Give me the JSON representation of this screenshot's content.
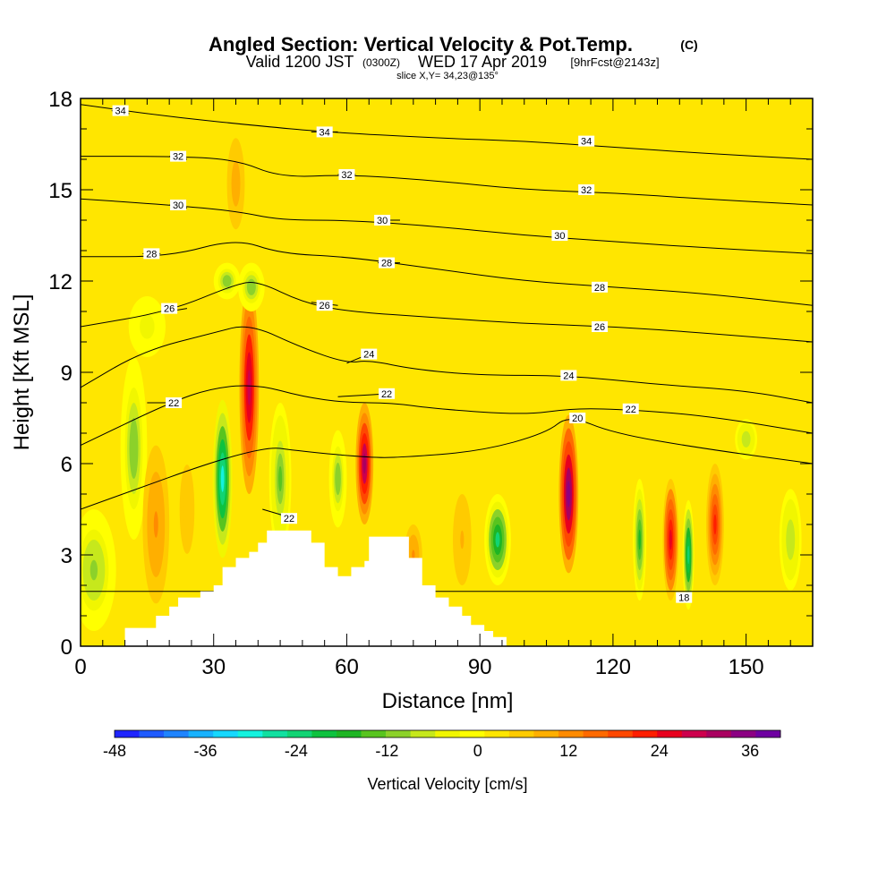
{
  "chart_data": {
    "type": "heatmap",
    "title": "Angled Section: Vertical Velocity & Pot.Temp.",
    "title_units": "(C)",
    "subtitle_main": "Valid 1200 JST",
    "subtitle_utc": "(0300Z)",
    "subtitle_date": "WED 17 Apr 2019",
    "subtitle_fcst": "[9hrFcst@2143z]",
    "slice_label": "slice X,Y= 34,23@135°",
    "xlabel": "Distance [nm]",
    "ylabel": "Height [Kft MSL]",
    "xlim": [
      0,
      165
    ],
    "ylim": [
      0,
      18
    ],
    "xticks": [
      0,
      30,
      60,
      90,
      120,
      150
    ],
    "yticks": [
      0,
      3,
      6,
      9,
      12,
      15,
      18
    ],
    "background_value_range": [
      0,
      6
    ],
    "vertical_velocity_cells": [
      {
        "x": 12,
        "y": 6.5,
        "xw": 3,
        "yw": 3,
        "v": -12
      },
      {
        "x": 17,
        "y": 4.0,
        "xw": 3,
        "yw": 2.6,
        "v": 12
      },
      {
        "x": 24,
        "y": 4.5,
        "xw": 2.5,
        "yw": 2.2,
        "v": 6
      },
      {
        "x": 32,
        "y": 5.5,
        "xw": 2.2,
        "yw": 2.6,
        "v": -30
      },
      {
        "x": 38,
        "y": 8.5,
        "xw": 2.2,
        "yw": 3.5,
        "v": 30
      },
      {
        "x": 38.5,
        "y": 11.8,
        "xw": 3,
        "yw": 0.8,
        "v": -12
      },
      {
        "x": 35,
        "y": 15.2,
        "xw": 2,
        "yw": 1.5,
        "v": 10
      },
      {
        "x": 45,
        "y": 5.5,
        "xw": 2.5,
        "yw": 2.5,
        "v": -14
      },
      {
        "x": 58,
        "y": 5.5,
        "xw": 2,
        "yw": 1.6,
        "v": -12
      },
      {
        "x": 64,
        "y": 6.0,
        "xw": 2,
        "yw": 2.0,
        "v": 32
      },
      {
        "x": 75,
        "y": 3.0,
        "xw": 2,
        "yw": 1,
        "v": 12
      },
      {
        "x": 86,
        "y": 3.5,
        "xw": 2.5,
        "yw": 1.8,
        "v": 8
      },
      {
        "x": 94,
        "y": 3.5,
        "xw": 3,
        "yw": 1.5,
        "v": -22
      },
      {
        "x": 110,
        "y": 5.0,
        "xw": 2.2,
        "yw": 2.6,
        "v": 36
      },
      {
        "x": 126,
        "y": 3.5,
        "xw": 1.5,
        "yw": 2,
        "v": -16
      },
      {
        "x": 133,
        "y": 3.5,
        "xw": 1.8,
        "yw": 2,
        "v": 26
      },
      {
        "x": 137,
        "y": 3.0,
        "xw": 1.3,
        "yw": 1.8,
        "v": -25
      },
      {
        "x": 143,
        "y": 4.0,
        "xw": 2,
        "yw": 2,
        "v": 22
      },
      {
        "x": 150,
        "y": 6.8,
        "xw": 3,
        "yw": 0.8,
        "v": -8
      },
      {
        "x": 160,
        "y": 3.5,
        "xw": 3,
        "yw": 2,
        "v": -8
      },
      {
        "x": 3,
        "y": 2.5,
        "xw": 5,
        "yw": 2,
        "v": -10
      },
      {
        "x": 15,
        "y": 10.5,
        "xw": 5,
        "yw": 1.2,
        "v": -5
      },
      {
        "x": 33,
        "y": 12.0,
        "xw": 3,
        "yw": 0.6,
        "v": -12
      }
    ],
    "potential_temperature_contours": [
      {
        "value": 18,
        "points": [
          [
            0,
            1.8
          ],
          [
            165,
            1.8
          ]
        ],
        "label_at": [
          136,
          1.6
        ]
      },
      {
        "value": 20,
        "points": [
          [
            0,
            4.5
          ],
          [
            40,
            6.6
          ],
          [
            50,
            6.4
          ],
          [
            65,
            6.2
          ],
          [
            72,
            6.2
          ],
          [
            90,
            6.4
          ],
          [
            105,
            7.0
          ],
          [
            110,
            7.6
          ],
          [
            120,
            7.0
          ],
          [
            140,
            6.5
          ],
          [
            165,
            6.0
          ]
        ],
        "label_at": [
          112,
          7.5
        ]
      },
      {
        "value": 22,
        "points": [
          [
            0,
            6.6
          ],
          [
            20,
            8.0
          ],
          [
            30,
            8.5
          ],
          [
            40,
            8.6
          ],
          [
            50,
            8.2
          ],
          [
            60,
            8.0
          ],
          [
            70,
            8.0
          ],
          [
            80,
            7.8
          ],
          [
            100,
            7.6
          ],
          [
            110,
            7.8
          ],
          [
            120,
            7.8
          ],
          [
            140,
            7.6
          ],
          [
            165,
            7.0
          ]
        ],
        "label_at": [
          124,
          7.8
        ]
      },
      {
        "value": 22,
        "points": [
          [
            15,
            8.0
          ],
          [
            22,
            8.0
          ]
        ],
        "label_at": [
          21,
          8.0
        ]
      },
      {
        "value": 22,
        "points": [
          [
            41,
            4.5
          ],
          [
            48,
            4.2
          ]
        ],
        "label_at": [
          47,
          4.2
        ]
      },
      {
        "value": 22,
        "points": [
          [
            58,
            8.2
          ],
          [
            70,
            8.3
          ]
        ],
        "label_at": [
          69,
          8.3
        ]
      },
      {
        "value": 24,
        "points": [
          [
            0,
            8.5
          ],
          [
            14,
            9.7
          ],
          [
            30,
            10.3
          ],
          [
            38,
            10.6
          ],
          [
            50,
            9.8
          ],
          [
            60,
            9.3
          ],
          [
            65,
            9.4
          ],
          [
            75,
            9.1
          ],
          [
            90,
            8.9
          ],
          [
            110,
            8.9
          ],
          [
            130,
            8.6
          ],
          [
            150,
            8.4
          ],
          [
            165,
            8.0
          ]
        ],
        "label_at": [
          110,
          8.9
        ]
      },
      {
        "value": 24,
        "points": [
          [
            60,
            9.3
          ],
          [
            65,
            9.6
          ]
        ],
        "label_at": [
          65,
          9.6
        ]
      },
      {
        "value": 26,
        "points": [
          [
            0,
            10.5
          ],
          [
            20,
            11.0
          ],
          [
            35,
            11.9
          ],
          [
            40,
            12.0
          ],
          [
            50,
            11.3
          ],
          [
            60,
            11.0
          ],
          [
            80,
            10.8
          ],
          [
            100,
            10.6
          ],
          [
            120,
            10.5
          ],
          [
            140,
            10.3
          ],
          [
            165,
            10.0
          ]
        ],
        "label_at": [
          117,
          10.5
        ]
      },
      {
        "value": 26,
        "points": [
          [
            20,
            11.0
          ],
          [
            24,
            11.1
          ]
        ],
        "label_at": [
          20,
          11.1
        ]
      },
      {
        "value": 26,
        "points": [
          [
            52,
            11.3
          ],
          [
            58,
            11.2
          ]
        ],
        "label_at": [
          55,
          11.2
        ]
      },
      {
        "value": 28,
        "points": [
          [
            0,
            12.8
          ],
          [
            20,
            12.8
          ],
          [
            35,
            13.4
          ],
          [
            45,
            12.9
          ],
          [
            60,
            12.8
          ],
          [
            80,
            12.4
          ],
          [
            100,
            12.0
          ],
          [
            120,
            11.8
          ],
          [
            140,
            11.6
          ],
          [
            165,
            11.2
          ]
        ],
        "label_at": [
          117,
          11.8
        ]
      },
      {
        "value": 28,
        "points": [
          [
            14,
            12.9
          ],
          [
            18,
            12.9
          ]
        ],
        "label_at": [
          16,
          12.9
        ]
      },
      {
        "value": 28,
        "points": [
          [
            67,
            12.6
          ],
          [
            72,
            12.6
          ]
        ],
        "label_at": [
          69,
          12.6
        ]
      },
      {
        "value": 30,
        "points": [
          [
            0,
            14.7
          ],
          [
            20,
            14.5
          ],
          [
            35,
            14.3
          ],
          [
            45,
            14.0
          ],
          [
            60,
            14.0
          ],
          [
            80,
            13.8
          ],
          [
            100,
            13.5
          ],
          [
            120,
            13.3
          ],
          [
            140,
            13.1
          ],
          [
            165,
            12.9
          ]
        ],
        "label_at": [
          108,
          13.5
        ]
      },
      {
        "value": 30,
        "points": [
          [
            20,
            14.5
          ],
          [
            24,
            14.4
          ]
        ],
        "label_at": [
          22,
          14.5
        ]
      },
      {
        "value": 30,
        "points": [
          [
            67,
            14.0
          ],
          [
            72,
            14.0
          ]
        ],
        "label_at": [
          68,
          14.0
        ]
      },
      {
        "value": 32,
        "points": [
          [
            0,
            16.1
          ],
          [
            20,
            16.1
          ],
          [
            35,
            16.0
          ],
          [
            45,
            15.4
          ],
          [
            60,
            15.5
          ],
          [
            80,
            15.3
          ],
          [
            100,
            15.0
          ],
          [
            120,
            14.9
          ],
          [
            140,
            14.7
          ],
          [
            165,
            14.5
          ]
        ],
        "label_at": [
          114,
          15.0
        ]
      },
      {
        "value": 32,
        "points": [
          [
            20,
            16.1
          ],
          [
            24,
            16.0
          ]
        ],
        "label_at": [
          22,
          16.1
        ]
      },
      {
        "value": 32,
        "points": [
          [
            58,
            15.5
          ],
          [
            62,
            15.5
          ]
        ],
        "label_at": [
          60,
          15.5
        ]
      },
      {
        "value": 34,
        "points": [
          [
            0,
            17.8
          ],
          [
            20,
            17.4
          ],
          [
            40,
            17.1
          ],
          [
            55,
            16.9
          ],
          [
            80,
            16.7
          ],
          [
            100,
            16.6
          ],
          [
            120,
            16.4
          ],
          [
            140,
            16.2
          ],
          [
            165,
            16.0
          ]
        ],
        "label_at": [
          114,
          16.6
        ]
      },
      {
        "value": 34,
        "points": [
          [
            7,
            17.6
          ],
          [
            11,
            17.5
          ]
        ],
        "label_at": [
          9,
          17.6
        ]
      },
      {
        "value": 34,
        "points": [
          [
            52,
            16.9
          ],
          [
            58,
            16.9
          ]
        ],
        "label_at": [
          55,
          16.9
        ]
      }
    ],
    "terrain_steps": [
      [
        10,
        0.6
      ],
      [
        17,
        1.0
      ],
      [
        20,
        1.3
      ],
      [
        22,
        1.6
      ],
      [
        27,
        1.8
      ],
      [
        30,
        2.0
      ],
      [
        32,
        2.6
      ],
      [
        35,
        2.9
      ],
      [
        38,
        3.1
      ],
      [
        40,
        3.4
      ],
      [
        42,
        3.8
      ],
      [
        52,
        3.4
      ],
      [
        55,
        2.6
      ],
      [
        58,
        2.3
      ],
      [
        61,
        2.6
      ],
      [
        64,
        2.8
      ],
      [
        65,
        3.6
      ],
      [
        71,
        3.6
      ],
      [
        74,
        2.9
      ],
      [
        77,
        2.0
      ],
      [
        80,
        1.6
      ],
      [
        83,
        1.3
      ],
      [
        86,
        1.0
      ],
      [
        88,
        0.7
      ],
      [
        91,
        0.5
      ],
      [
        93,
        0.3
      ],
      [
        96,
        0.0
      ]
    ],
    "colorbar": {
      "title": "Vertical Velocity [cm/s]",
      "ticks": [
        -48,
        -36,
        -24,
        -12,
        0,
        12,
        24,
        36
      ],
      "tick_labels": [
        "-48",
        "-36",
        "-24",
        "-12",
        "0",
        "12",
        "24",
        "36"
      ],
      "min": -48,
      "max": 40,
      "colors": [
        "#1f25ff",
        "#1f5bff",
        "#1f84ff",
        "#18b2ff",
        "#16d8ff",
        "#14f2de",
        "#11e0a0",
        "#11d474",
        "#0ec23f",
        "#1eb524",
        "#58c41f",
        "#8cd12a",
        "#c6e81c",
        "#f1f600",
        "#ffff00",
        "#ffe600",
        "#ffcb00",
        "#ffaf00",
        "#ff8b00",
        "#ff6a00",
        "#ff4800",
        "#ff1f00",
        "#e8001e",
        "#cd004d",
        "#a90060",
        "#8c0083",
        "#6e00a1"
      ]
    }
  }
}
